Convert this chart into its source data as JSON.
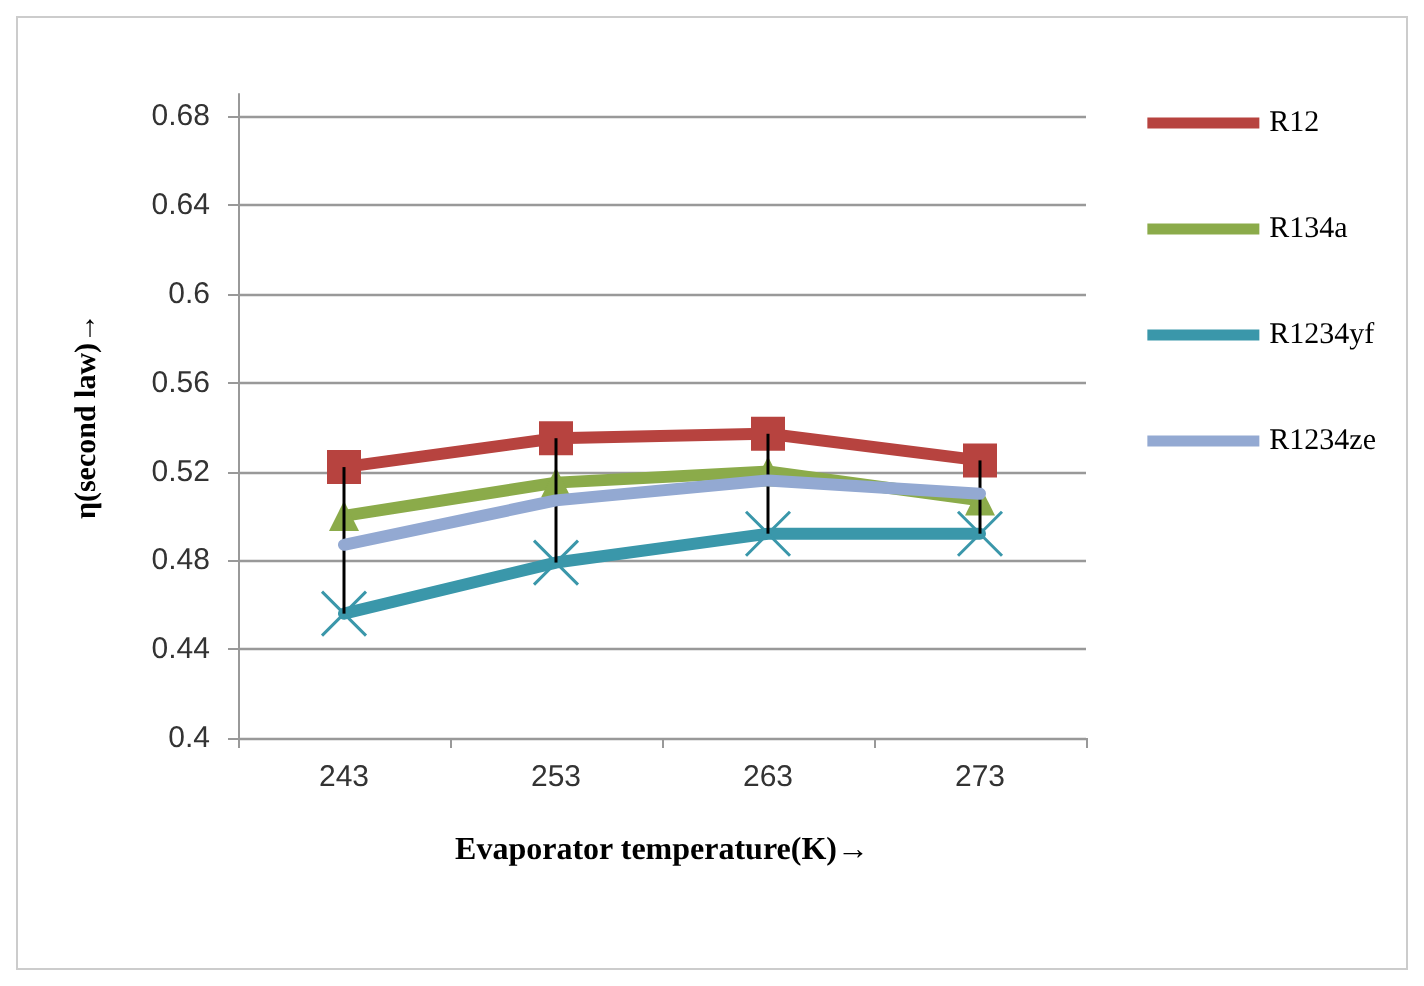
{
  "chart_data": {
    "type": "line",
    "xlabel": "Evaporator temperature(K)→",
    "ylabel": "η(second law)→",
    "categories": [
      "243",
      "253",
      "263",
      "273"
    ],
    "series": [
      {
        "name": "R12",
        "color": "#b7433f",
        "marker": "square",
        "values": [
          0.522,
          0.535,
          0.537,
          0.525
        ],
        "errors": [
          [
            0.456,
            0.522
          ],
          [
            0.479,
            0.535
          ],
          [
            0.492,
            0.537
          ],
          [
            0.492,
            0.525
          ]
        ]
      },
      {
        "name": "R134a",
        "color": "#8bab4a",
        "marker": "triangle",
        "values": [
          0.5,
          0.515,
          0.52,
          0.507
        ]
      },
      {
        "name": "R1234yf",
        "color": "#3a97aa",
        "marker": "cross",
        "values": [
          0.456,
          0.479,
          0.492,
          0.492
        ]
      },
      {
        "name": "R1234ze",
        "color": "#93a9d2",
        "marker": "none",
        "values": [
          0.487,
          0.507,
          0.516,
          0.51
        ]
      }
    ],
    "ylim": [
      0.4,
      0.69
    ],
    "yticks": [
      0.4,
      0.44,
      0.48,
      0.52,
      0.56,
      0.6,
      0.64,
      0.68
    ],
    "grid": "y",
    "legend": "right"
  }
}
